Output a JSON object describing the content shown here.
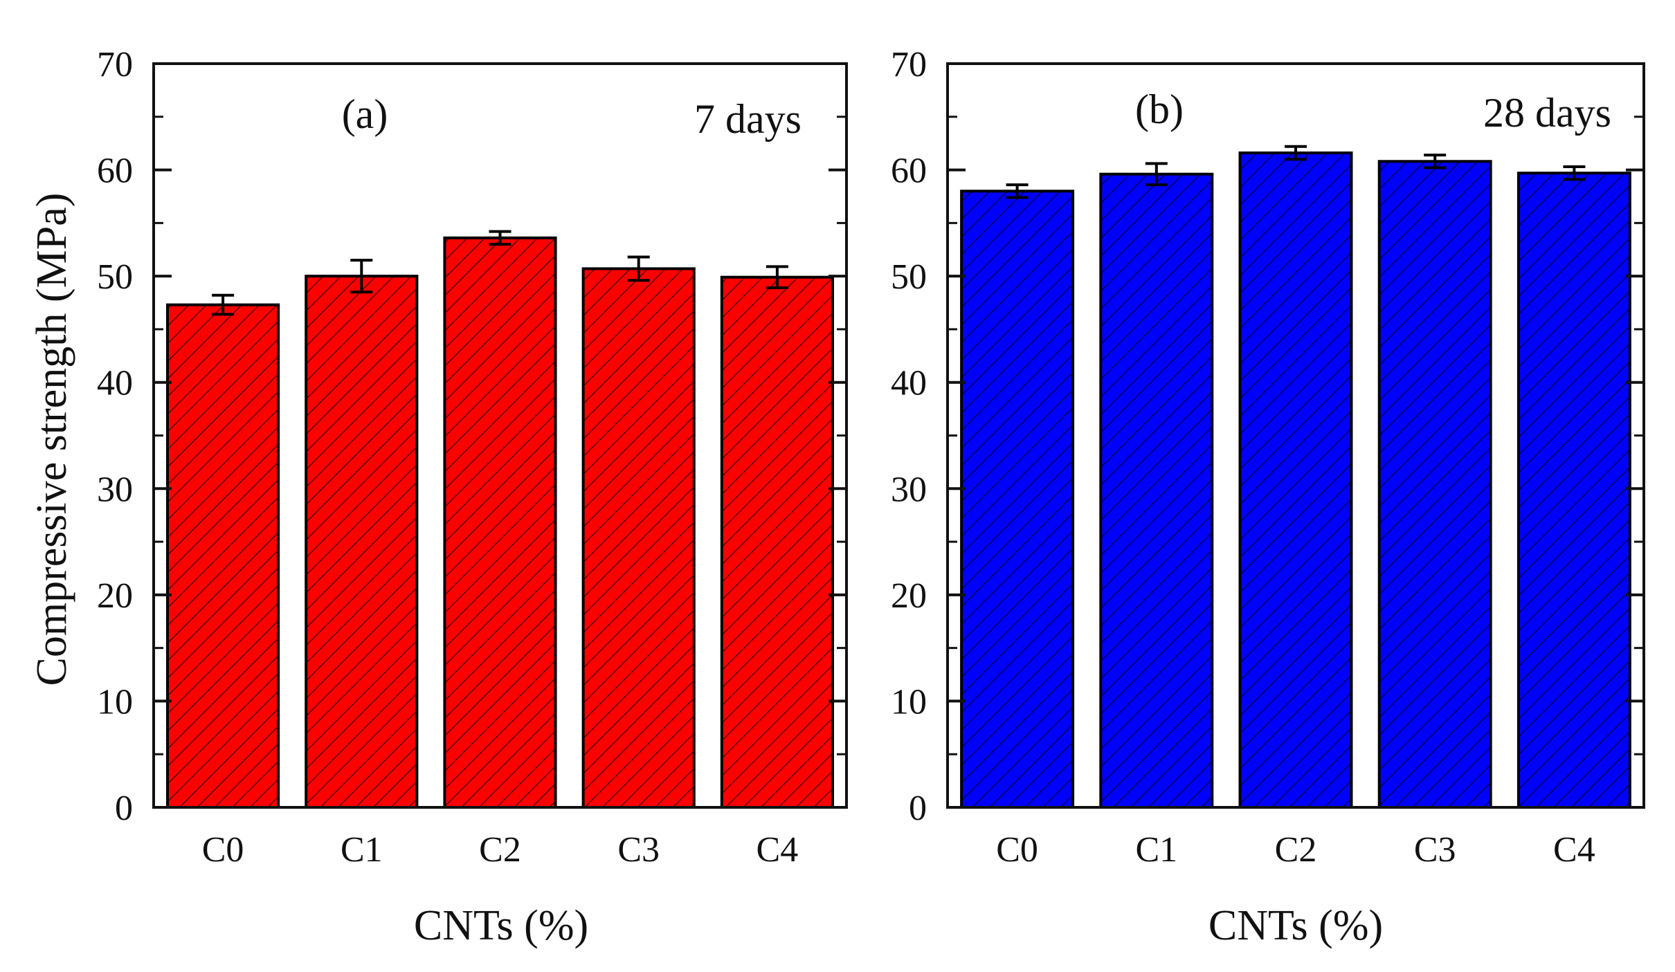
{
  "chart_data": [
    {
      "type": "bar",
      "panel_label": "(a)",
      "annotation": "7 days",
      "categories": [
        "C0",
        "C1",
        "C2",
        "C3",
        "C4"
      ],
      "values": [
        47.3,
        50.0,
        53.6,
        50.7,
        49.9
      ],
      "errors": [
        0.9,
        1.5,
        0.6,
        1.1,
        1.0
      ],
      "ylim": [
        0,
        70
      ],
      "yticks": [
        "0",
        "10",
        "20",
        "30",
        "40",
        "50",
        "60",
        "70"
      ],
      "xlabel": "CNTs (%)",
      "ylabel": "Compressive strength (MPa)",
      "bar_color": "#ff0000",
      "hatch": "diagonal"
    },
    {
      "type": "bar",
      "panel_label": "(b)",
      "annotation": "28 days",
      "categories": [
        "C0",
        "C1",
        "C2",
        "C3",
        "C4"
      ],
      "values": [
        58.0,
        59.6,
        61.6,
        60.8,
        59.7
      ],
      "errors": [
        0.6,
        1.0,
        0.6,
        0.6,
        0.6
      ],
      "ylim": [
        0,
        70
      ],
      "yticks": [
        "0",
        "10",
        "20",
        "30",
        "40",
        "50",
        "60",
        "70"
      ],
      "xlabel": "CNTs (%)",
      "ylabel": "",
      "bar_color": "#0000ff",
      "hatch": "diagonal"
    }
  ]
}
